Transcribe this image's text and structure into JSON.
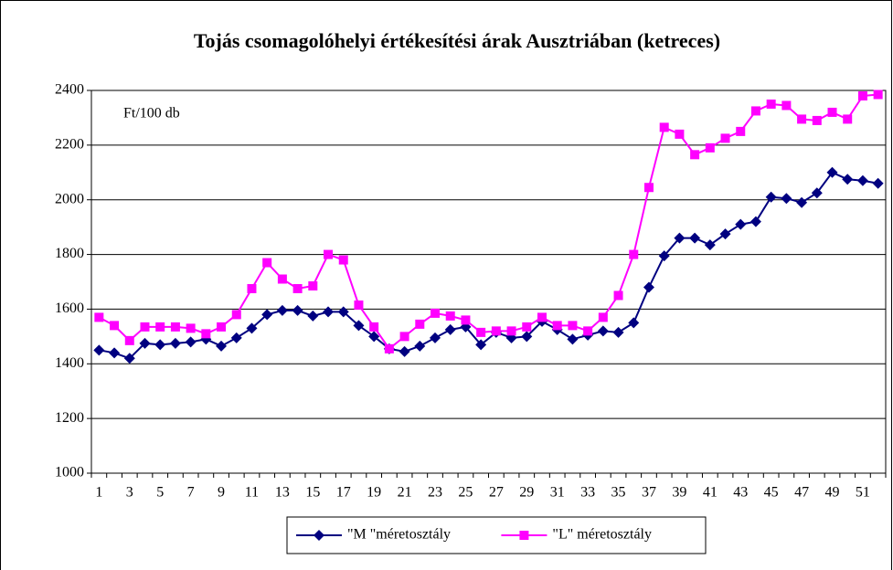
{
  "chart_data": {
    "type": "line",
    "title": "Tojás csomagolóhelyi értékesítési árak Ausztriában (ketreces)",
    "annotation": "Ft/100 db",
    "categories": [
      1,
      null,
      3,
      null,
      5,
      null,
      7,
      null,
      9,
      null,
      11,
      null,
      13,
      null,
      15,
      null,
      17,
      null,
      19,
      null,
      21,
      null,
      23,
      null,
      25,
      null,
      27,
      null,
      29,
      null,
      31,
      null,
      33,
      null,
      35,
      null,
      37,
      null,
      39,
      null,
      41,
      null,
      43,
      null,
      45,
      null,
      47,
      null,
      49,
      null,
      51,
      null
    ],
    "series": [
      {
        "name": "\"M \"méretosztály",
        "color": "#000080",
        "marker": "diamond",
        "values": [
          1450,
          1440,
          1420,
          1475,
          1470,
          1475,
          1480,
          1490,
          1465,
          1495,
          1530,
          1580,
          1595,
          1595,
          1575,
          1590,
          1590,
          1540,
          1500,
          1455,
          1445,
          1465,
          1495,
          1525,
          1535,
          1470,
          1515,
          1495,
          1500,
          1555,
          1525,
          1490,
          1505,
          1520,
          1515,
          1550,
          1680,
          1795,
          1860,
          1860,
          1835,
          1875,
          1910,
          1920,
          2010,
          2005,
          1990,
          2025,
          2100,
          2075,
          2070,
          2060
        ]
      },
      {
        "name": "\"L\" méretosztály",
        "color": "#ff00ff",
        "marker": "square",
        "values": [
          1570,
          1540,
          1485,
          1535,
          1535,
          1535,
          1530,
          1510,
          1535,
          1580,
          1675,
          1770,
          1710,
          1675,
          1685,
          1800,
          1780,
          1615,
          1535,
          1455,
          1500,
          1545,
          1585,
          1575,
          1560,
          1515,
          1520,
          1520,
          1535,
          1570,
          1540,
          1540,
          1520,
          1570,
          1650,
          1800,
          2045,
          2265,
          2240,
          2165,
          2190,
          2225,
          2250,
          2325,
          2350,
          2345,
          2295,
          2290,
          2320,
          2295,
          2380,
          2385
        ]
      }
    ],
    "ylim": [
      1000,
      2400
    ],
    "yticks": [
      1000,
      1200,
      1400,
      1600,
      1800,
      2000,
      2200,
      2400
    ],
    "grid": true,
    "legend": "bottom"
  }
}
